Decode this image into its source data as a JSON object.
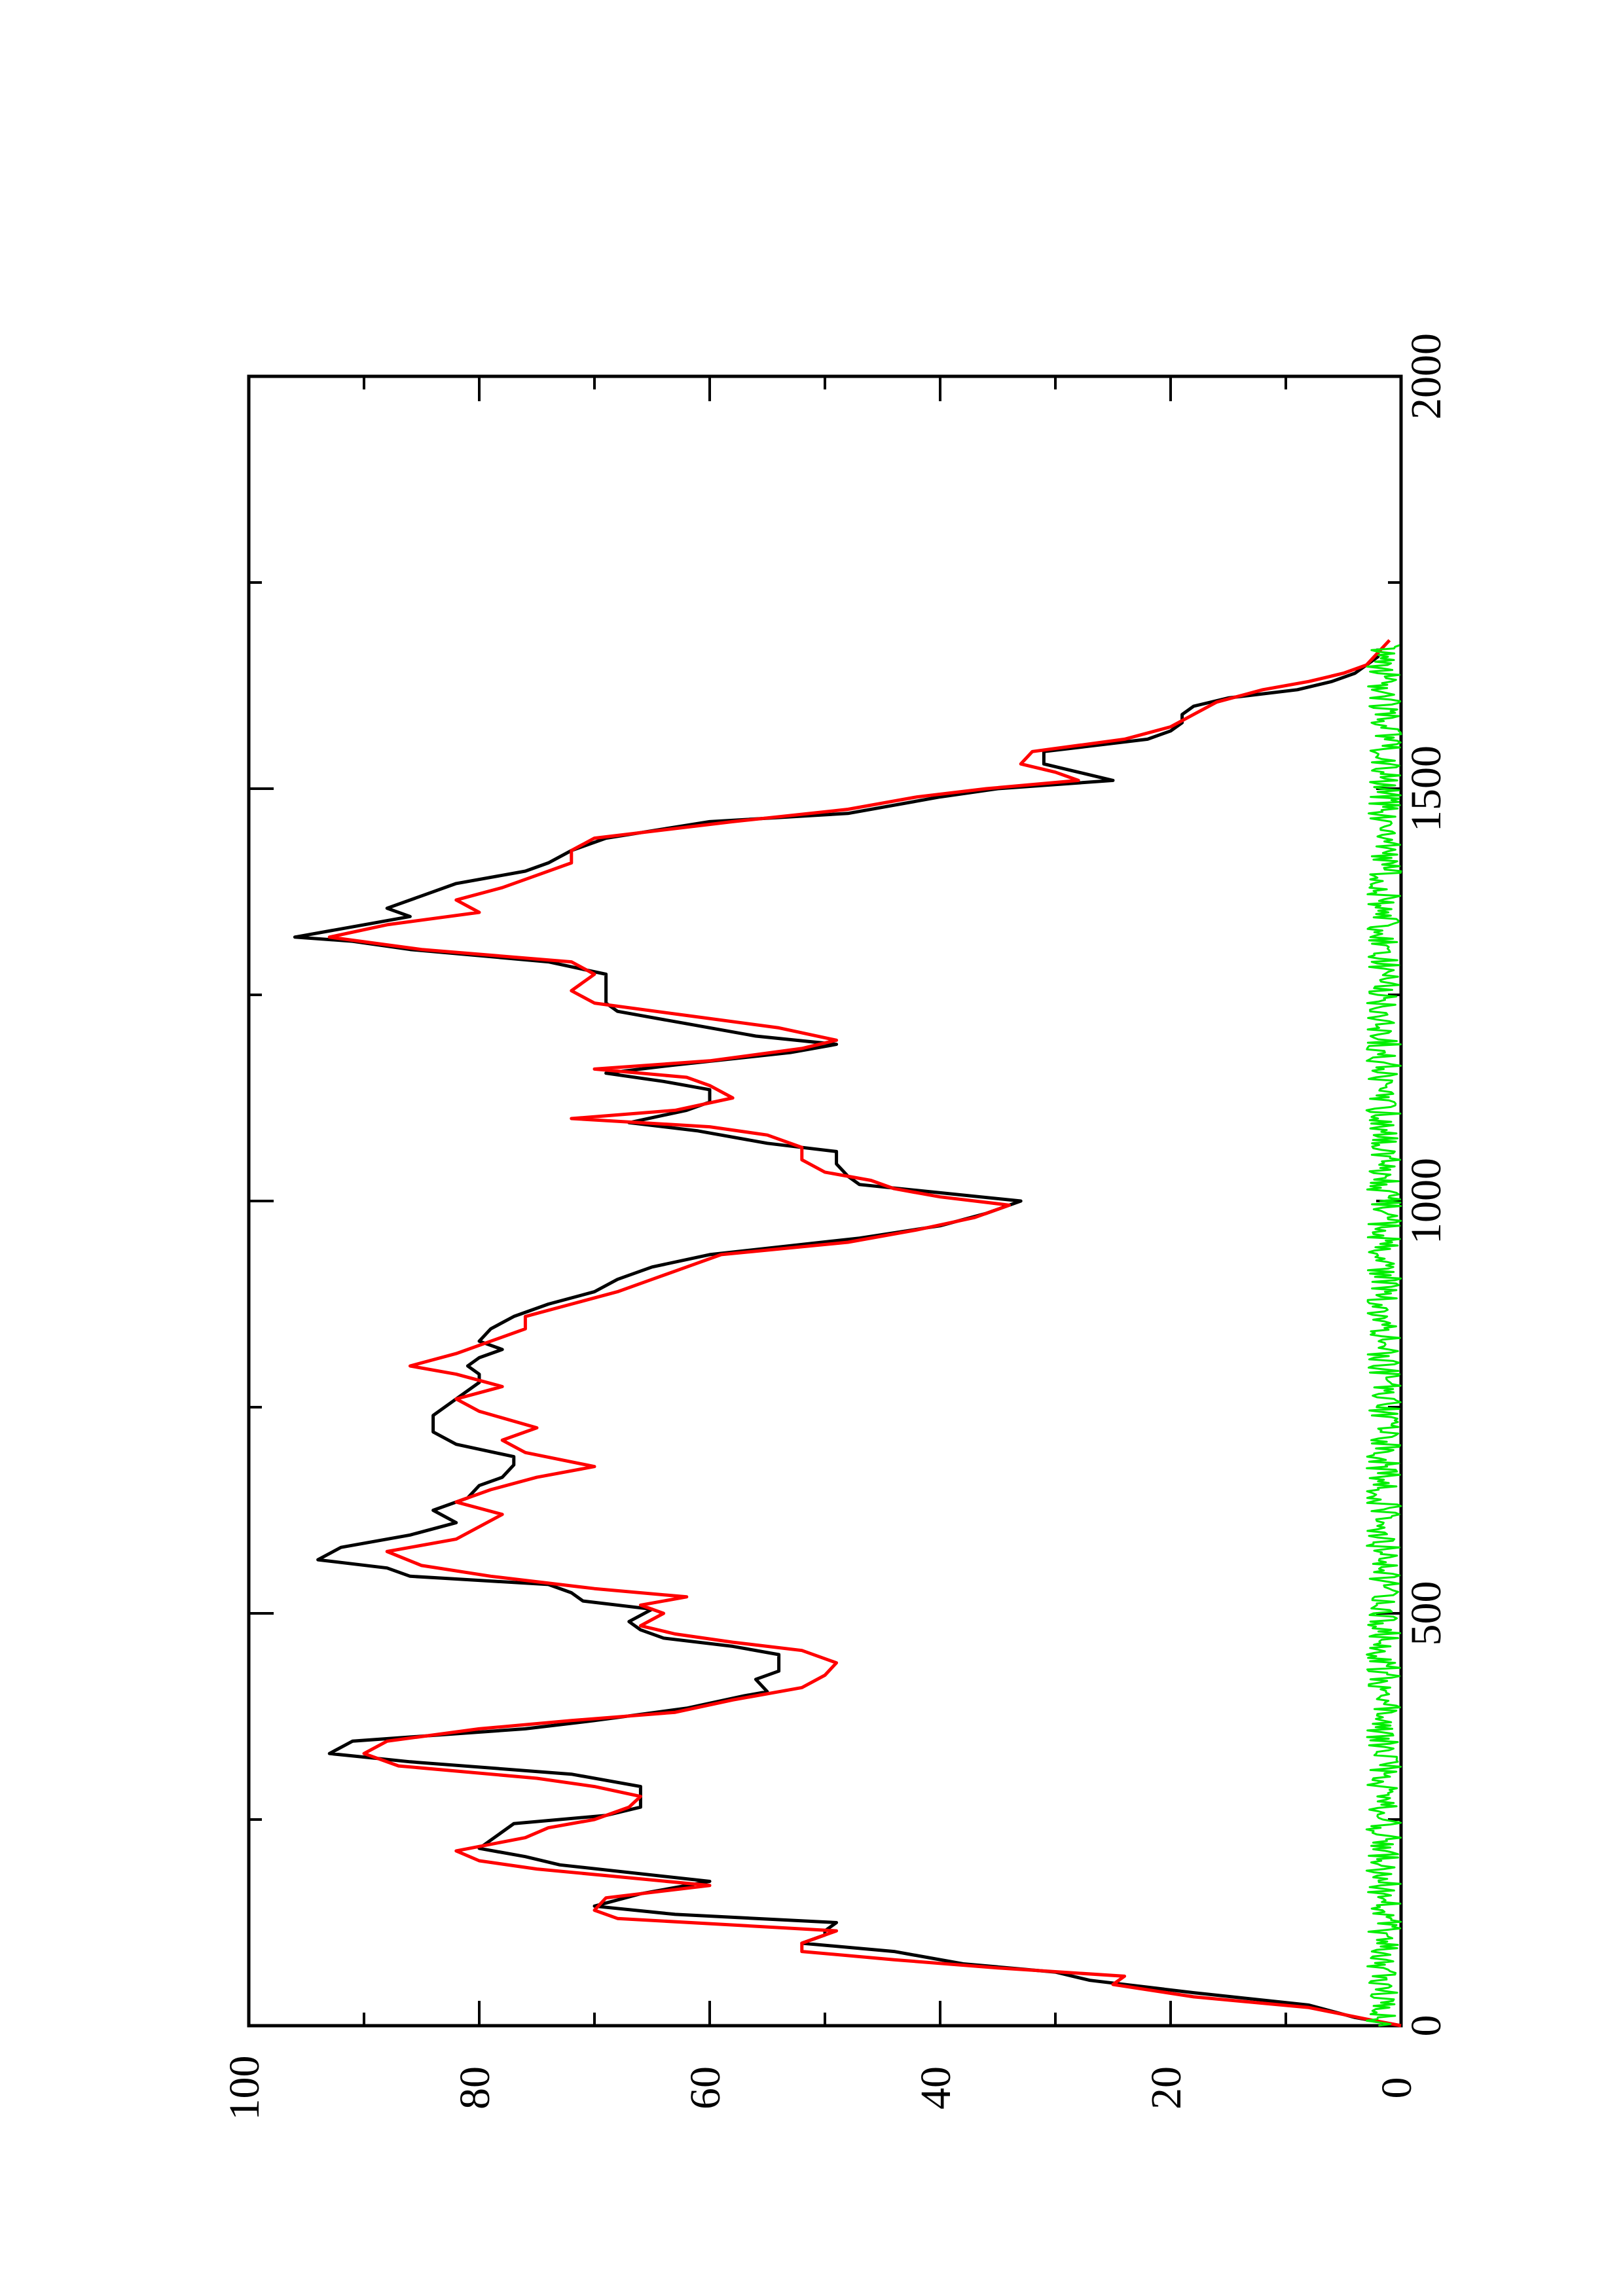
{
  "chart_data": {
    "type": "line",
    "orientation": "rotated-90-ccw",
    "title": "",
    "xlabel": "",
    "ylabel": "",
    "xlim": [
      0,
      2000
    ],
    "ylim": [
      0,
      100
    ],
    "x_ticks": [
      0,
      500,
      1000,
      1500,
      2000
    ],
    "x_tick_labels": [
      "0",
      "500",
      "1000",
      "1500",
      "2000"
    ],
    "y_ticks": [
      0,
      20,
      40,
      60,
      80,
      100
    ],
    "y_tick_labels": [
      "0",
      "20",
      "40",
      "60",
      "80",
      "100"
    ],
    "grid": false,
    "legend": "none",
    "series": [
      {
        "color": "#000000",
        "points": [
          [
            0,
            0
          ],
          [
            10,
            4
          ],
          [
            25,
            8
          ],
          [
            40,
            18
          ],
          [
            55,
            27
          ],
          [
            65,
            30
          ],
          [
            75,
            38
          ],
          [
            90,
            44
          ],
          [
            100,
            52
          ],
          [
            110,
            50
          ],
          [
            115,
            50
          ],
          [
            125,
            49
          ],
          [
            135,
            63
          ],
          [
            145,
            70
          ],
          [
            160,
            66
          ],
          [
            175,
            60
          ],
          [
            195,
            73
          ],
          [
            205,
            76
          ],
          [
            215,
            80
          ],
          [
            225,
            79
          ],
          [
            245,
            77
          ],
          [
            255,
            69
          ],
          [
            265,
            66
          ],
          [
            275,
            66
          ],
          [
            290,
            66
          ],
          [
            305,
            72
          ],
          [
            320,
            86
          ],
          [
            330,
            93
          ],
          [
            345,
            91
          ],
          [
            360,
            76
          ],
          [
            370,
            70
          ],
          [
            385,
            62
          ],
          [
            400,
            57
          ],
          [
            405,
            55
          ],
          [
            420,
            56
          ],
          [
            430,
            54
          ],
          [
            450,
            54
          ],
          [
            460,
            58
          ],
          [
            470,
            64
          ],
          [
            480,
            66
          ],
          [
            490,
            67
          ],
          [
            505,
            65
          ],
          [
            515,
            71
          ],
          [
            525,
            72
          ],
          [
            535,
            74
          ],
          [
            545,
            86
          ],
          [
            555,
            88
          ],
          [
            565,
            94
          ],
          [
            580,
            92
          ],
          [
            595,
            86
          ],
          [
            610,
            82
          ],
          [
            625,
            84
          ],
          [
            640,
            81
          ],
          [
            655,
            80
          ],
          [
            665,
            78
          ],
          [
            680,
            77
          ],
          [
            690,
            77
          ],
          [
            705,
            82
          ],
          [
            720,
            84
          ],
          [
            740,
            84
          ],
          [
            760,
            82
          ],
          [
            780,
            80
          ],
          [
            790,
            80
          ],
          [
            800,
            81
          ],
          [
            810,
            80
          ],
          [
            820,
            78
          ],
          [
            830,
            80
          ],
          [
            845,
            79
          ],
          [
            860,
            77
          ],
          [
            875,
            74
          ],
          [
            890,
            70
          ],
          [
            905,
            68
          ],
          [
            920,
            65
          ],
          [
            935,
            60
          ],
          [
            955,
            47
          ],
          [
            970,
            40
          ],
          [
            985,
            36
          ],
          [
            1000,
            33
          ],
          [
            1010,
            40
          ],
          [
            1020,
            47
          ],
          [
            1030,
            48
          ],
          [
            1045,
            49
          ],
          [
            1060,
            49
          ],
          [
            1070,
            55
          ],
          [
            1085,
            61
          ],
          [
            1095,
            67
          ],
          [
            1110,
            62
          ],
          [
            1120,
            60
          ],
          [
            1135,
            60
          ],
          [
            1145,
            64
          ],
          [
            1155,
            69
          ],
          [
            1165,
            63
          ],
          [
            1180,
            53
          ],
          [
            1190,
            49
          ],
          [
            1200,
            56
          ],
          [
            1215,
            62
          ],
          [
            1230,
            68
          ],
          [
            1240,
            69
          ],
          [
            1260,
            69
          ],
          [
            1275,
            69
          ],
          [
            1290,
            74
          ],
          [
            1305,
            86
          ],
          [
            1315,
            91
          ],
          [
            1320,
            96
          ],
          [
            1335,
            90
          ],
          [
            1345,
            86
          ],
          [
            1355,
            88
          ],
          [
            1370,
            85
          ],
          [
            1385,
            82
          ],
          [
            1400,
            76
          ],
          [
            1410,
            74
          ],
          [
            1425,
            72
          ],
          [
            1440,
            69
          ],
          [
            1460,
            60
          ],
          [
            1470,
            48
          ],
          [
            1490,
            40
          ],
          [
            1500,
            35
          ],
          [
            1510,
            25
          ],
          [
            1520,
            28
          ],
          [
            1530,
            31
          ],
          [
            1545,
            31
          ],
          [
            1560,
            22
          ],
          [
            1570,
            20
          ],
          [
            1580,
            19
          ],
          [
            1590,
            19
          ],
          [
            1600,
            18
          ],
          [
            1610,
            15
          ],
          [
            1620,
            9
          ],
          [
            1630,
            6
          ],
          [
            1640,
            4
          ],
          [
            1650,
            3
          ],
          [
            1660,
            2
          ],
          [
            1670,
            2
          ]
        ]
      },
      {
        "color": "#ff0000",
        "points": [
          [
            0,
            0
          ],
          [
            8,
            3
          ],
          [
            22,
            8
          ],
          [
            35,
            18
          ],
          [
            50,
            25
          ],
          [
            60,
            24
          ],
          [
            70,
            35
          ],
          [
            80,
            44
          ],
          [
            90,
            52
          ],
          [
            100,
            52
          ],
          [
            115,
            49
          ],
          [
            130,
            68
          ],
          [
            140,
            70
          ],
          [
            155,
            69
          ],
          [
            170,
            60
          ],
          [
            190,
            75
          ],
          [
            200,
            80
          ],
          [
            212,
            82
          ],
          [
            228,
            76
          ],
          [
            240,
            74
          ],
          [
            250,
            70
          ],
          [
            265,
            67
          ],
          [
            278,
            66
          ],
          [
            290,
            70
          ],
          [
            300,
            75
          ],
          [
            315,
            87
          ],
          [
            330,
            90
          ],
          [
            345,
            88
          ],
          [
            360,
            80
          ],
          [
            370,
            72
          ],
          [
            380,
            63
          ],
          [
            395,
            58
          ],
          [
            410,
            52
          ],
          [
            425,
            50
          ],
          [
            440,
            49
          ],
          [
            455,
            52
          ],
          [
            465,
            58
          ],
          [
            475,
            63
          ],
          [
            485,
            66
          ],
          [
            500,
            64
          ],
          [
            510,
            66
          ],
          [
            520,
            62
          ],
          [
            530,
            70
          ],
          [
            545,
            79
          ],
          [
            558,
            85
          ],
          [
            575,
            88
          ],
          [
            590,
            82
          ],
          [
            605,
            80
          ],
          [
            620,
            78
          ],
          [
            635,
            82
          ],
          [
            650,
            79
          ],
          [
            665,
            75
          ],
          [
            678,
            70
          ],
          [
            695,
            76
          ],
          [
            710,
            78
          ],
          [
            725,
            75
          ],
          [
            745,
            80
          ],
          [
            760,
            82
          ],
          [
            775,
            78
          ],
          [
            790,
            82
          ],
          [
            800,
            86
          ],
          [
            815,
            82
          ],
          [
            830,
            79
          ],
          [
            845,
            76
          ],
          [
            860,
            76
          ],
          [
            875,
            72
          ],
          [
            890,
            68
          ],
          [
            905,
            65
          ],
          [
            920,
            62
          ],
          [
            935,
            59
          ],
          [
            950,
            48
          ],
          [
            965,
            42
          ],
          [
            980,
            37
          ],
          [
            995,
            34
          ],
          [
            1005,
            40
          ],
          [
            1015,
            44
          ],
          [
            1025,
            46
          ],
          [
            1035,
            50
          ],
          [
            1050,
            52
          ],
          [
            1065,
            52
          ],
          [
            1080,
            55
          ],
          [
            1090,
            60
          ],
          [
            1100,
            72
          ],
          [
            1110,
            63
          ],
          [
            1125,
            58
          ],
          [
            1140,
            60
          ],
          [
            1150,
            62
          ],
          [
            1160,
            70
          ],
          [
            1170,
            60
          ],
          [
            1185,
            52
          ],
          [
            1195,
            49
          ],
          [
            1210,
            54
          ],
          [
            1225,
            62
          ],
          [
            1240,
            70
          ],
          [
            1255,
            72
          ],
          [
            1275,
            70
          ],
          [
            1290,
            72
          ],
          [
            1305,
            85
          ],
          [
            1320,
            93
          ],
          [
            1335,
            88
          ],
          [
            1350,
            80
          ],
          [
            1365,
            82
          ],
          [
            1380,
            78
          ],
          [
            1395,
            75
          ],
          [
            1410,
            72
          ],
          [
            1425,
            72
          ],
          [
            1440,
            70
          ],
          [
            1460,
            58
          ],
          [
            1475,
            48
          ],
          [
            1490,
            42
          ],
          [
            1500,
            36
          ],
          [
            1510,
            28
          ],
          [
            1520,
            30
          ],
          [
            1530,
            33
          ],
          [
            1545,
            32
          ],
          [
            1560,
            24
          ],
          [
            1575,
            20
          ],
          [
            1590,
            18
          ],
          [
            1605,
            16
          ],
          [
            1620,
            12
          ],
          [
            1630,
            8
          ],
          [
            1640,
            5
          ],
          [
            1650,
            3
          ],
          [
            1665,
            2
          ],
          [
            1680,
            1
          ]
        ]
      },
      {
        "color": "#00ee00",
        "baseline_amplitude": 3,
        "x_range": [
          0,
          1675
        ]
      }
    ]
  }
}
